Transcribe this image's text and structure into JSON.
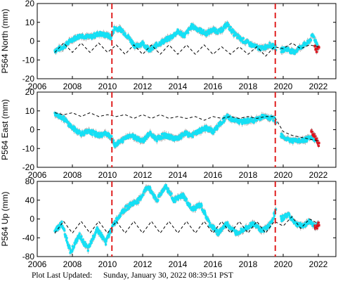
{
  "footer": {
    "label": "Plot Last Updated:",
    "value": "Sunday, January 30, 2022 08:39:51 PST"
  },
  "colors": {
    "data": "#14e0f5",
    "error_bars": "#a9a9a9",
    "recent": "#e0101a",
    "event_lines": "#e02020",
    "model": "#000000"
  },
  "event_years": [
    2010.25,
    2019.55
  ],
  "chart_data": [
    {
      "type": "scatter",
      "ylabel": "P564 North (mm)",
      "xlim": [
        2006,
        2023
      ],
      "ylim": [
        -20,
        20
      ],
      "xticks": [
        2006,
        2008,
        2010,
        2012,
        2014,
        2016,
        2018,
        2020,
        2022
      ],
      "yticks": [
        -20,
        -10,
        0,
        10,
        20
      ],
      "series": [
        {
          "role": "observed",
          "x": [
            2007.0,
            2007.5,
            2008.0,
            2008.5,
            2009.0,
            2009.5,
            2010.0,
            2010.2,
            2010.4,
            2010.8,
            2011.2,
            2011.6,
            2012.0,
            2012.4,
            2012.8,
            2013.2,
            2013.6,
            2014.0,
            2014.4,
            2014.8,
            2015.2,
            2015.6,
            2016.0,
            2016.4,
            2016.8,
            2017.2,
            2017.6,
            2018.0,
            2018.4,
            2018.8,
            2019.2,
            2019.5,
            2019.8,
            2020.2,
            2020.6,
            2021.0,
            2021.4,
            2021.7,
            2022.0
          ],
          "y": [
            -5,
            -3,
            1,
            3,
            2,
            4,
            3,
            2,
            7,
            6,
            2,
            -3,
            -1,
            -5,
            -2,
            0,
            2,
            5,
            3,
            8,
            6,
            4,
            6,
            5,
            9,
            4,
            1,
            -1,
            -3,
            -4,
            -2,
            -3,
            -5,
            -4,
            -6,
            -3,
            -1,
            3,
            -3
          ]
        },
        {
          "role": "model",
          "x": [
            2007.0,
            2007.5,
            2008.0,
            2008.5,
            2009.0,
            2009.5,
            2010.0,
            2010.5,
            2011.0,
            2011.5,
            2012.0,
            2012.5,
            2013.0,
            2013.5,
            2014.0,
            2014.5,
            2015.0,
            2015.5,
            2016.0,
            2016.5,
            2017.0,
            2017.5,
            2018.0,
            2018.5,
            2019.0,
            2019.5,
            2020.0,
            2020.5,
            2021.0,
            2021.5,
            2022.0
          ],
          "y": [
            -6,
            -1,
            -6,
            -1,
            -6,
            -1,
            -6,
            -2,
            -7,
            -2,
            -7,
            -2,
            -7,
            -2,
            -7,
            -2,
            -7,
            -2,
            -7,
            -3,
            -7,
            -3,
            -7,
            -3,
            -8,
            -3,
            -4,
            -1,
            -4,
            -2,
            -3
          ]
        },
        {
          "role": "recent",
          "x": [
            2021.8,
            2021.9,
            2022.0,
            2022.05
          ],
          "y": [
            -3,
            -5,
            -4,
            -3
          ]
        }
      ]
    },
    {
      "type": "scatter",
      "ylabel": "P564 East (mm)",
      "xlim": [
        2006,
        2023
      ],
      "ylim": [
        -20,
        20
      ],
      "xticks": [
        2006,
        2008,
        2010,
        2012,
        2014,
        2016,
        2018,
        2020,
        2022
      ],
      "yticks": [
        -20,
        -10,
        0,
        10,
        20
      ],
      "series": [
        {
          "role": "observed",
          "x": [
            2007.0,
            2007.5,
            2008.0,
            2008.5,
            2009.0,
            2009.5,
            2010.0,
            2010.2,
            2010.4,
            2010.8,
            2011.2,
            2011.6,
            2012.0,
            2012.4,
            2012.8,
            2013.2,
            2013.6,
            2014.0,
            2014.4,
            2014.8,
            2015.2,
            2015.6,
            2016.0,
            2016.4,
            2016.8,
            2017.2,
            2017.6,
            2018.0,
            2018.4,
            2018.8,
            2019.2,
            2019.5,
            2019.8,
            2020.2,
            2020.6,
            2021.0,
            2021.4,
            2021.7,
            2022.0
          ],
          "y": [
            9,
            6,
            1,
            -2,
            -1,
            -3,
            -2,
            -4,
            -8,
            -6,
            -3,
            -4,
            -6,
            -2,
            -5,
            -3,
            -4,
            -5,
            -2,
            -3,
            -1,
            1,
            -1,
            3,
            7,
            5,
            4,
            5,
            5,
            7,
            6,
            6,
            -2,
            -5,
            -6,
            -6,
            -5,
            -4,
            -7
          ]
        },
        {
          "role": "model",
          "x": [
            2007.0,
            2007.5,
            2008.0,
            2008.5,
            2009.0,
            2009.5,
            2010.0,
            2010.5,
            2011.0,
            2011.5,
            2012.0,
            2012.5,
            2013.0,
            2013.5,
            2014.0,
            2014.5,
            2015.0,
            2015.5,
            2016.0,
            2016.5,
            2017.0,
            2017.5,
            2018.0,
            2018.5,
            2019.0,
            2019.5,
            2020.0,
            2020.5,
            2021.0,
            2021.5,
            2022.0
          ],
          "y": [
            9,
            8,
            9,
            7,
            9,
            7,
            8,
            7,
            8,
            6,
            8,
            6,
            8,
            6,
            7,
            6,
            7,
            5,
            7,
            6,
            7,
            6,
            7,
            6,
            7,
            7,
            -1,
            -3,
            -4,
            -5,
            -6
          ]
        },
        {
          "role": "recent",
          "x": [
            2021.6,
            2021.9,
            2022.0,
            2022.05
          ],
          "y": [
            -1,
            -5,
            -8,
            -7
          ]
        }
      ]
    },
    {
      "type": "scatter",
      "ylabel": "P564 Up (mm)",
      "xlim": [
        2006,
        2023
      ],
      "ylim": [
        -80,
        80
      ],
      "xticks": [
        2006,
        2008,
        2010,
        2012,
        2014,
        2016,
        2018,
        2020,
        2022
      ],
      "yticks": [
        -80,
        -40,
        0,
        40,
        80
      ],
      "series": [
        {
          "role": "observed",
          "x": [
            2007.0,
            2007.4,
            2007.9,
            2008.4,
            2008.9,
            2009.4,
            2009.9,
            2010.3,
            2010.8,
            2011.3,
            2011.8,
            2012.3,
            2012.8,
            2013.3,
            2013.8,
            2014.3,
            2014.8,
            2015.3,
            2015.8,
            2016.3,
            2016.8,
            2017.3,
            2017.8,
            2018.3,
            2018.8,
            2019.3,
            2019.6,
            2019.9,
            2020.3,
            2020.7,
            2021.1,
            2021.5,
            2021.8,
            2022.0
          ],
          "y": [
            -25,
            -10,
            -70,
            -35,
            -65,
            -20,
            -50,
            -15,
            15,
            30,
            40,
            70,
            40,
            70,
            40,
            50,
            20,
            30,
            -10,
            -30,
            -10,
            -30,
            -20,
            -10,
            -25,
            -10,
            20,
            0,
            10,
            -10,
            -15,
            -5,
            -15,
            -10
          ]
        },
        {
          "role": "model",
          "x": [
            2007.0,
            2007.5,
            2008.0,
            2008.5,
            2009.0,
            2009.5,
            2010.0,
            2010.5,
            2011.0,
            2011.5,
            2012.0,
            2012.5,
            2013.0,
            2013.5,
            2014.0,
            2014.5,
            2015.0,
            2015.5,
            2016.0,
            2016.5,
            2017.0,
            2017.5,
            2018.0,
            2018.5,
            2019.0,
            2019.5,
            2020.0,
            2020.5,
            2021.0,
            2021.5,
            2022.0
          ],
          "y": [
            -30,
            -5,
            -30,
            -5,
            -30,
            -5,
            -30,
            -5,
            -30,
            -5,
            -30,
            -5,
            -30,
            -5,
            -30,
            -5,
            -30,
            -5,
            -30,
            -5,
            -30,
            -5,
            -30,
            -5,
            -30,
            -5,
            -15,
            5,
            -20,
            0,
            -10
          ]
        },
        {
          "role": "recent",
          "x": [
            2021.8,
            2021.9,
            2022.0,
            2022.05
          ],
          "y": [
            -15,
            -20,
            -10,
            -15
          ]
        }
      ]
    }
  ]
}
